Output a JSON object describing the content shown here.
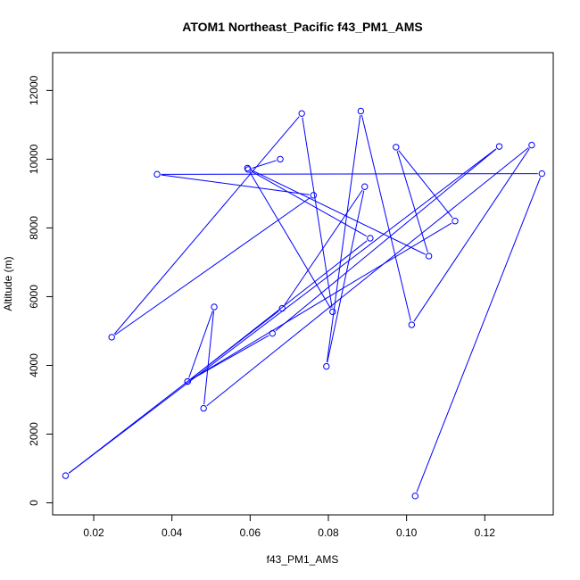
{
  "chart_data": {
    "type": "line",
    "title": "ATOM1 Northeast_Pacific f43_PM1_AMS",
    "xlabel": "f43_PM1_AMS",
    "ylabel": "Altitude (m)",
    "xlim": [
      0.0095,
      0.1375
    ],
    "ylim": [
      -350,
      13100
    ],
    "x_ticks": [
      0.02,
      0.04,
      0.06,
      0.08,
      0.1,
      0.12
    ],
    "x_tick_labels": [
      "0.02",
      "0.04",
      "0.06",
      "0.08",
      "0.10",
      "0.12"
    ],
    "y_ticks": [
      0,
      2000,
      4000,
      6000,
      8000,
      10000,
      12000
    ],
    "y_tick_labels": [
      "0",
      "2000",
      "4000",
      "6000",
      "8000",
      "10000",
      "12000"
    ],
    "line_color": "#0000ff",
    "markers": "open-circle",
    "grid": false,
    "points": [
      {
        "x": 0.1022,
        "y": 200
      },
      {
        "x": 0.1346,
        "y": 9580
      },
      {
        "x": 0.0362,
        "y": 9560
      },
      {
        "x": 0.0762,
        "y": 8950
      },
      {
        "x": 0.0246,
        "y": 4820
      },
      {
        "x": 0.0732,
        "y": 11330
      },
      {
        "x": 0.0811,
        "y": 5560
      },
      {
        "x": 0.0593,
        "y": 9740
      },
      {
        "x": 0.1057,
        "y": 7180
      },
      {
        "x": 0.0973,
        "y": 10350
      },
      {
        "x": 0.1124,
        "y": 8200
      },
      {
        "x": 0.044,
        "y": 3530
      },
      {
        "x": 0.0508,
        "y": 5700
      },
      {
        "x": 0.0481,
        "y": 2750
      },
      {
        "x": 0.132,
        "y": 10410
      },
      {
        "x": 0.1013,
        "y": 5180
      },
      {
        "x": 0.0883,
        "y": 11400
      },
      {
        "x": 0.0795,
        "y": 3970
      },
      {
        "x": 0.0893,
        "y": 9200
      },
      {
        "x": 0.0682,
        "y": 5660
      },
      {
        "x": 0.0128,
        "y": 790
      },
      {
        "x": 0.1237,
        "y": 10370
      },
      {
        "x": 0.0657,
        "y": 4930
      },
      {
        "x": 0.044,
        "y": 3530
      },
      {
        "x": 0.0907,
        "y": 7700
      },
      {
        "x": 0.0595,
        "y": 9700
      },
      {
        "x": 0.0677,
        "y": 10000
      }
    ]
  }
}
